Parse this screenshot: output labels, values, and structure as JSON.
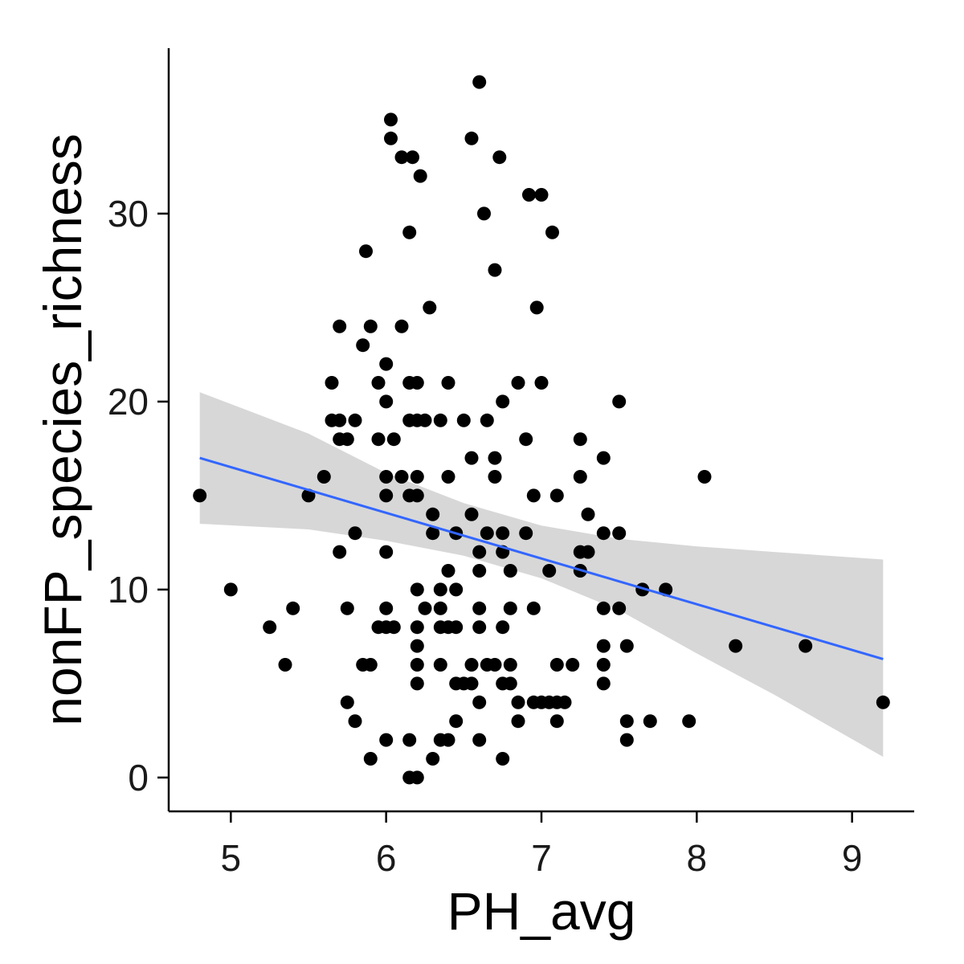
{
  "chart_data": {
    "type": "scatter",
    "title": "",
    "xlabel": "PH_avg",
    "ylabel": "nonFP_species_richness",
    "xlim": [
      4.6,
      9.4
    ],
    "ylim": [
      -1.8,
      38.8
    ],
    "x_ticks": [
      "5",
      "6",
      "7",
      "8",
      "9"
    ],
    "y_ticks": [
      "0",
      "10",
      "20",
      "30"
    ],
    "grid": false,
    "legend": "none",
    "colors": {
      "points": "#000000",
      "fit_line": "#3366FF",
      "confidence_band": "#d4d4d4",
      "axis": "#000000"
    },
    "fit": {
      "method": "linear regression",
      "line": [
        [
          4.8,
          17.0
        ],
        [
          9.2,
          6.3
        ]
      ],
      "ci_upper": [
        [
          4.8,
          20.5
        ],
        [
          5.5,
          18.3
        ],
        [
          6.0,
          16.2
        ],
        [
          6.5,
          14.6
        ],
        [
          7.0,
          13.4
        ],
        [
          7.5,
          12.7
        ],
        [
          8.0,
          12.3
        ],
        [
          8.5,
          12.0
        ],
        [
          9.2,
          11.6
        ]
      ],
      "ci_lower": [
        [
          4.8,
          13.5
        ],
        [
          5.5,
          13.2
        ],
        [
          6.0,
          12.6
        ],
        [
          6.5,
          11.8
        ],
        [
          7.0,
          10.6
        ],
        [
          7.5,
          8.9
        ],
        [
          8.0,
          6.6
        ],
        [
          8.5,
          4.4
        ],
        [
          9.2,
          1.1
        ]
      ]
    },
    "points": [
      [
        4.8,
        15
      ],
      [
        5.0,
        10
      ],
      [
        5.25,
        8
      ],
      [
        5.35,
        6
      ],
      [
        5.4,
        9
      ],
      [
        5.5,
        15
      ],
      [
        5.6,
        16
      ],
      [
        5.65,
        21
      ],
      [
        5.65,
        19
      ],
      [
        5.7,
        19
      ],
      [
        5.7,
        18
      ],
      [
        5.7,
        24
      ],
      [
        5.7,
        12
      ],
      [
        5.75,
        18
      ],
      [
        5.75,
        9
      ],
      [
        5.75,
        4
      ],
      [
        5.8,
        19
      ],
      [
        5.8,
        13
      ],
      [
        5.8,
        3
      ],
      [
        5.85,
        23
      ],
      [
        5.85,
        6
      ],
      [
        5.87,
        28
      ],
      [
        5.9,
        24
      ],
      [
        5.9,
        6
      ],
      [
        5.9,
        1
      ],
      [
        5.95,
        21
      ],
      [
        5.95,
        18
      ],
      [
        5.95,
        8
      ],
      [
        6.0,
        22
      ],
      [
        6.0,
        20
      ],
      [
        6.0,
        16
      ],
      [
        6.0,
        15
      ],
      [
        6.0,
        12
      ],
      [
        6.0,
        9
      ],
      [
        6.0,
        8
      ],
      [
        6.0,
        2
      ],
      [
        6.03,
        35
      ],
      [
        6.03,
        34
      ],
      [
        6.05,
        18
      ],
      [
        6.05,
        8
      ],
      [
        6.1,
        33
      ],
      [
        6.1,
        24
      ],
      [
        6.1,
        16
      ],
      [
        6.15,
        29
      ],
      [
        6.15,
        21
      ],
      [
        6.15,
        19
      ],
      [
        6.15,
        15
      ],
      [
        6.15,
        2
      ],
      [
        6.15,
        0
      ],
      [
        6.17,
        33
      ],
      [
        6.2,
        21
      ],
      [
        6.2,
        19
      ],
      [
        6.2,
        16
      ],
      [
        6.2,
        15
      ],
      [
        6.2,
        10
      ],
      [
        6.2,
        8
      ],
      [
        6.2,
        7
      ],
      [
        6.2,
        6
      ],
      [
        6.2,
        5
      ],
      [
        6.2,
        0
      ],
      [
        6.22,
        32
      ],
      [
        6.25,
        19
      ],
      [
        6.25,
        9
      ],
      [
        6.28,
        25
      ],
      [
        6.3,
        14
      ],
      [
        6.3,
        13
      ],
      [
        6.3,
        1
      ],
      [
        6.35,
        19
      ],
      [
        6.35,
        10
      ],
      [
        6.35,
        9
      ],
      [
        6.35,
        8
      ],
      [
        6.35,
        6
      ],
      [
        6.35,
        2
      ],
      [
        6.4,
        21
      ],
      [
        6.4,
        16
      ],
      [
        6.4,
        11
      ],
      [
        6.4,
        8
      ],
      [
        6.4,
        2
      ],
      [
        6.45,
        13
      ],
      [
        6.45,
        10
      ],
      [
        6.45,
        8
      ],
      [
        6.45,
        5
      ],
      [
        6.45,
        3
      ],
      [
        6.5,
        19
      ],
      [
        6.5,
        5
      ],
      [
        6.55,
        34
      ],
      [
        6.55,
        17
      ],
      [
        6.55,
        14
      ],
      [
        6.55,
        6
      ],
      [
        6.55,
        5
      ],
      [
        6.6,
        37
      ],
      [
        6.6,
        12
      ],
      [
        6.6,
        11
      ],
      [
        6.6,
        9
      ],
      [
        6.6,
        8
      ],
      [
        6.6,
        4
      ],
      [
        6.6,
        2
      ],
      [
        6.63,
        30
      ],
      [
        6.65,
        19
      ],
      [
        6.65,
        13
      ],
      [
        6.65,
        6
      ],
      [
        6.7,
        27
      ],
      [
        6.7,
        17
      ],
      [
        6.7,
        16
      ],
      [
        6.7,
        6
      ],
      [
        6.73,
        33
      ],
      [
        6.75,
        20
      ],
      [
        6.75,
        13
      ],
      [
        6.75,
        12
      ],
      [
        6.75,
        8
      ],
      [
        6.75,
        5
      ],
      [
        6.75,
        1
      ],
      [
        6.8,
        11
      ],
      [
        6.8,
        9
      ],
      [
        6.8,
        6
      ],
      [
        6.8,
        5
      ],
      [
        6.85,
        21
      ],
      [
        6.85,
        4
      ],
      [
        6.85,
        3
      ],
      [
        6.9,
        18
      ],
      [
        6.9,
        13
      ],
      [
        6.92,
        31
      ],
      [
        6.95,
        15
      ],
      [
        6.95,
        9
      ],
      [
        6.95,
        4
      ],
      [
        6.97,
        25
      ],
      [
        7.0,
        31
      ],
      [
        7.0,
        21
      ],
      [
        7.0,
        4
      ],
      [
        7.05,
        11
      ],
      [
        7.05,
        4
      ],
      [
        7.07,
        29
      ],
      [
        7.1,
        15
      ],
      [
        7.1,
        6
      ],
      [
        7.1,
        4
      ],
      [
        7.1,
        3
      ],
      [
        7.15,
        4
      ],
      [
        7.2,
        6
      ],
      [
        7.25,
        18
      ],
      [
        7.25,
        16
      ],
      [
        7.25,
        12
      ],
      [
        7.25,
        11
      ],
      [
        7.3,
        14
      ],
      [
        7.3,
        12
      ],
      [
        7.4,
        17
      ],
      [
        7.4,
        13
      ],
      [
        7.4,
        9
      ],
      [
        7.4,
        7
      ],
      [
        7.4,
        6
      ],
      [
        7.4,
        5
      ],
      [
        7.5,
        20
      ],
      [
        7.5,
        13
      ],
      [
        7.5,
        9
      ],
      [
        7.55,
        7
      ],
      [
        7.55,
        3
      ],
      [
        7.55,
        2
      ],
      [
        7.65,
        10
      ],
      [
        7.7,
        3
      ],
      [
        7.8,
        10
      ],
      [
        7.95,
        3
      ],
      [
        8.05,
        16
      ],
      [
        8.25,
        7
      ],
      [
        8.7,
        7
      ],
      [
        9.2,
        4
      ]
    ]
  }
}
